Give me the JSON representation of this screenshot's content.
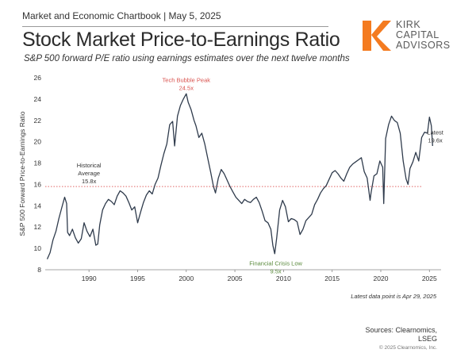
{
  "header": {
    "chartbook": "Market and Economic Chartbook | May 5, 2025",
    "title": "Stock Market Price-to-Earnings Ratio",
    "subtitle": "S&P 500 forward P/E ratio using earnings estimates over the next twelve months"
  },
  "logo": {
    "line1": "KIRK",
    "line2": "CAPITAL",
    "line3": "ADVISORS",
    "color": "#f47b20"
  },
  "footer": {
    "latest_note": "Latest data point is Apr 29, 2025",
    "sources_line1": "Sources: Clearnomics,",
    "sources_line2": "LSEG",
    "copyright": "© 2025 Clearnomics, Inc."
  },
  "chart_data": {
    "type": "line",
    "ylabel": "S&P 500 Forward Price-to-Earnings Ratio",
    "xlabel": "",
    "xlim": [
      1985.5,
      2026.2
    ],
    "ylim": [
      8,
      26
    ],
    "xticks": [
      1990,
      1995,
      2000,
      2005,
      2010,
      2015,
      2020,
      2025
    ],
    "yticks": [
      8,
      10,
      12,
      14,
      16,
      18,
      20,
      22,
      24,
      26
    ],
    "grid": false,
    "line_color": "#2f3b4c",
    "average_line": {
      "value": 15.8,
      "color": "#e06666",
      "style": "dotted"
    },
    "annotations": [
      {
        "id": "historical",
        "line1": "Historical",
        "line2": "Average",
        "line3": "15.8x",
        "x": 1990,
        "y": 17.6,
        "color": "#333333"
      },
      {
        "id": "tech",
        "line1": "Tech Bubble Peak",
        "line2": "24.5x",
        "x": 2000,
        "y": 25.6,
        "color": "#d9534f"
      },
      {
        "id": "crisis",
        "line1": "Financial Crisis Low",
        "line2": "9.5x",
        "x": 2009.2,
        "y": 8.4,
        "color": "#5a8a3c"
      },
      {
        "id": "latest",
        "line1": "Latest",
        "line2": "19.6x",
        "x": 2025.6,
        "y": 20.7,
        "color": "#333333"
      }
    ],
    "series": [
      {
        "x": [
          1985.7,
          1986.0,
          1986.3,
          1986.6,
          1986.9,
          1987.2,
          1987.5,
          1987.7,
          1987.8,
          1988.0,
          1988.3,
          1988.6,
          1988.9,
          1989.2,
          1989.5,
          1989.8,
          1990.1,
          1990.4,
          1990.7,
          1990.9,
          1991.1,
          1991.4,
          1991.7,
          1992.0,
          1992.3,
          1992.6,
          1992.9,
          1993.2,
          1993.5,
          1993.8,
          1994.1,
          1994.4,
          1994.7,
          1995.0,
          1995.3,
          1995.6,
          1995.9,
          1996.2,
          1996.5,
          1996.8,
          1997.1,
          1997.4,
          1997.7,
          1998.0,
          1998.3,
          1998.6,
          1998.8,
          1999.1,
          1999.4,
          1999.7,
          2000.0,
          2000.2,
          2000.5,
          2000.8,
          2001.0,
          2001.3,
          2001.6,
          2001.9,
          2002.2,
          2002.5,
          2002.8,
          2003.0,
          2003.3,
          2003.6,
          2003.9,
          2004.2,
          2004.5,
          2004.8,
          2005.1,
          2005.4,
          2005.7,
          2006.0,
          2006.3,
          2006.6,
          2006.9,
          2007.2,
          2007.5,
          2007.8,
          2008.1,
          2008.4,
          2008.7,
          2008.9,
          2009.1,
          2009.3,
          2009.6,
          2009.9,
          2010.2,
          2010.5,
          2010.8,
          2011.1,
          2011.4,
          2011.7,
          2012.0,
          2012.3,
          2012.6,
          2012.9,
          2013.2,
          2013.5,
          2013.8,
          2014.1,
          2014.4,
          2014.7,
          2015.0,
          2015.3,
          2015.6,
          2015.9,
          2016.2,
          2016.5,
          2016.8,
          2017.1,
          2017.4,
          2017.7,
          2018.0,
          2018.3,
          2018.6,
          2018.9,
          2019.0,
          2019.3,
          2019.6,
          2019.9,
          2020.2,
          2020.3,
          2020.5,
          2020.8,
          2021.1,
          2021.4,
          2021.7,
          2022.0,
          2022.3,
          2022.6,
          2022.8,
          2023.0,
          2023.3,
          2023.6,
          2023.9,
          2024.2,
          2024.5,
          2024.8,
          2025.0,
          2025.2,
          2025.33
        ],
        "values": [
          9.0,
          9.6,
          10.8,
          11.6,
          12.8,
          13.8,
          14.8,
          14.2,
          11.5,
          11.2,
          11.8,
          11.0,
          10.5,
          10.9,
          12.4,
          11.6,
          11.1,
          11.8,
          10.3,
          10.4,
          12.2,
          13.6,
          14.2,
          14.6,
          14.4,
          14.1,
          14.9,
          15.4,
          15.2,
          14.9,
          14.3,
          13.6,
          13.9,
          12.4,
          13.4,
          14.3,
          15.0,
          15.4,
          15.1,
          16.0,
          16.6,
          17.8,
          18.9,
          19.8,
          21.6,
          21.9,
          19.6,
          22.4,
          23.4,
          24.0,
          24.5,
          23.7,
          23.0,
          22.0,
          21.5,
          20.4,
          20.8,
          19.8,
          18.5,
          17.2,
          15.8,
          15.2,
          16.6,
          17.4,
          17.0,
          16.4,
          15.8,
          15.3,
          14.8,
          14.5,
          14.2,
          14.6,
          14.4,
          14.3,
          14.6,
          14.8,
          14.3,
          13.5,
          12.6,
          12.4,
          11.8,
          10.3,
          9.5,
          11.0,
          13.6,
          14.5,
          13.9,
          12.5,
          12.8,
          12.7,
          12.5,
          11.3,
          11.8,
          12.6,
          12.9,
          13.2,
          14.1,
          14.6,
          15.2,
          15.6,
          15.9,
          16.5,
          17.1,
          17.3,
          17.0,
          16.6,
          16.3,
          17.0,
          17.6,
          17.9,
          18.1,
          18.3,
          18.5,
          17.2,
          16.6,
          14.5,
          15.2,
          16.8,
          17.0,
          18.2,
          17.6,
          14.2,
          20.3,
          21.6,
          22.4,
          22.0,
          21.8,
          20.8,
          18.2,
          16.5,
          16.0,
          17.5,
          18.1,
          19.0,
          18.2,
          20.4,
          20.9,
          20.8,
          22.3,
          21.5,
          19.6
        ]
      }
    ]
  }
}
